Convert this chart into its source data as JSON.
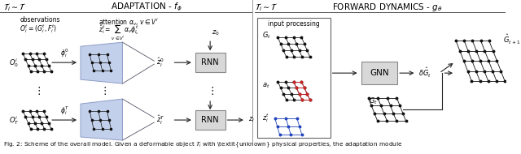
{
  "title_left": "ADAPTATION - $f_\\phi$",
  "title_right": "FORWARD DYNAMICS - $g_\\theta$",
  "label_left": "$\\mathcal{T}_i \\sim \\mathcal{T}$",
  "label_right": "$\\mathcal{T}_i \\sim \\mathcal{T}$",
  "caption": "Fig. 2: Scheme of the overall model. Given a deformable object $\\mathcal{T}_i$ with \\textit{unknown} physical properties, the adaptation module",
  "bg_color": "#ffffff",
  "attention_blue": "#b8c8e8",
  "attention_edge": "#8090c0",
  "box_fill": "#d8d8d8",
  "box_edge": "#888888",
  "input_box_edge": "#666666",
  "arrow_color": "#222222",
  "black": "#111111",
  "red": "#cc2222",
  "blue": "#2244bb"
}
